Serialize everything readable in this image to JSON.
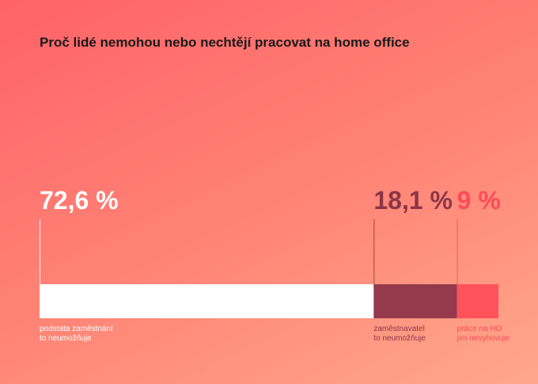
{
  "title": "Proč lidé nemohou nebo nechtějí pracovat na home office",
  "chart_data": {
    "type": "bar",
    "orientation": "horizontal-stacked",
    "title": "Proč lidé nemohou nebo nechtějí pracovat na home office",
    "unit": "%",
    "segments": [
      {
        "value": 72.6,
        "value_label": "72,6 %",
        "label_lines": [
          "podstata zaměstnání",
          "to neumožňuje"
        ],
        "color": "#ffffff",
        "text_color": "#ffffff"
      },
      {
        "value": 18.1,
        "value_label": "18,1 %",
        "label_lines": [
          "zaměstnavatel",
          "to neumožňuje"
        ],
        "color": "#943a4c",
        "text_color": "#8c3547"
      },
      {
        "value": 9,
        "value_label": "9 %",
        "label_lines": [
          "práce na HO",
          "jim nevyhovuje"
        ],
        "color": "#ff525a",
        "text_color": "#ff4a58"
      }
    ]
  }
}
